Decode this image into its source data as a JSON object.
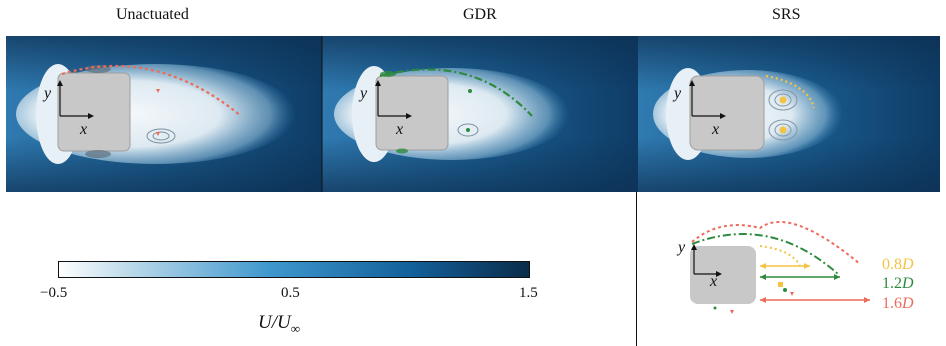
{
  "panels": [
    {
      "title": "Unactuated"
    },
    {
      "title": "GDR"
    },
    {
      "title": "SRS"
    }
  ],
  "axes": {
    "x": "x",
    "y": "y"
  },
  "colorbar": {
    "ticks": [
      "−0.5",
      "0.5",
      "1.5"
    ],
    "label_main": "U/U",
    "label_sub": "∞"
  },
  "legend": {
    "items": [
      {
        "label": "0.8",
        "unit": "D",
        "color": "#f5c342"
      },
      {
        "label": "1.2",
        "unit": "D",
        "color": "#2e8b3e"
      },
      {
        "label": "1.6",
        "unit": "D",
        "color": "#ee6a5a"
      }
    ]
  },
  "colors": {
    "field_light": "#eef4f8",
    "field_dark": "#0a2c4a",
    "body": "#c8c8c8",
    "unactuated": "#ee6a5a",
    "gdr": "#2e8b3e",
    "srs": "#f5c342"
  }
}
